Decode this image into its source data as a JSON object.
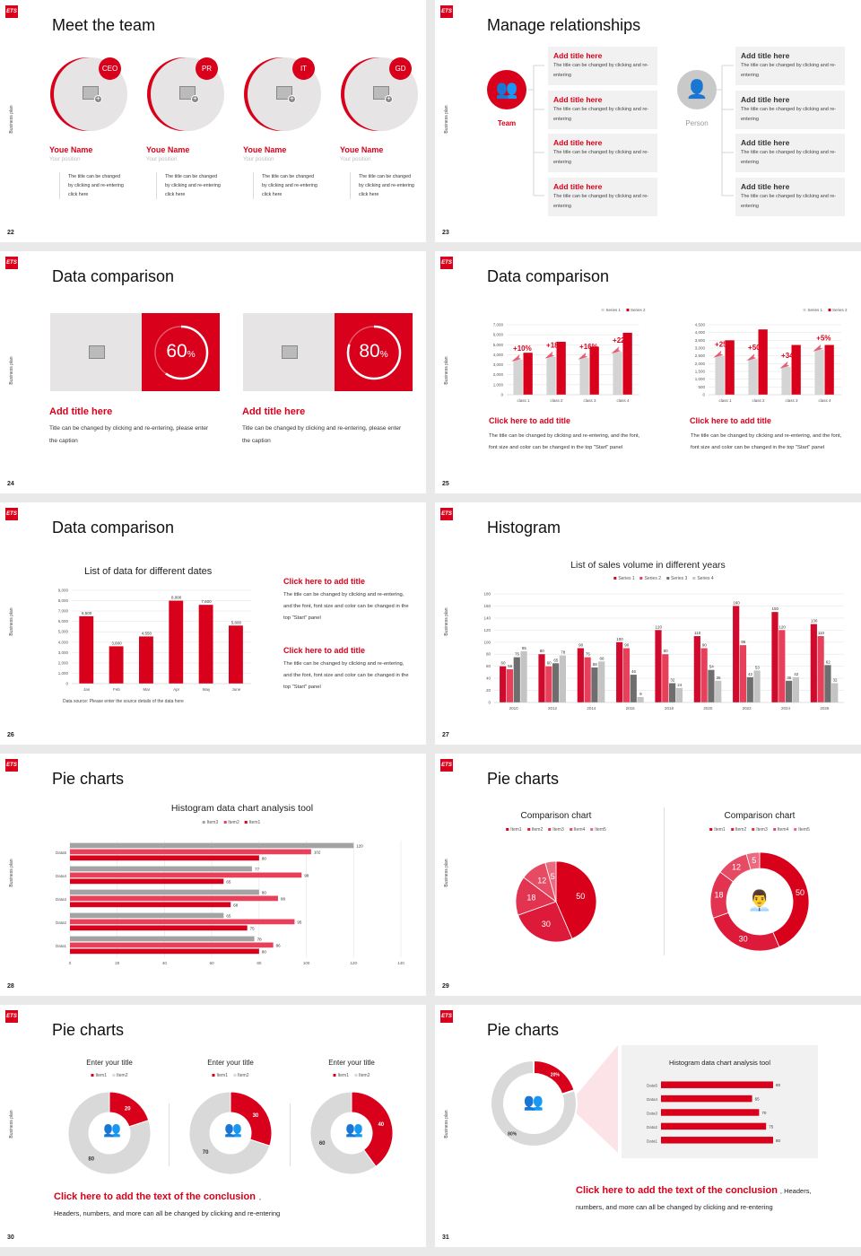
{
  "colors": {
    "accent": "#d9001b",
    "pink": "#e8405a",
    "dark_gray": "#6e6e6e",
    "light_gray": "#c9c9c9",
    "panel": "#f1f1f1"
  },
  "logo_text": "ETS",
  "side_label": "Business plan",
  "slides": [
    {
      "page": "22",
      "title": "Meet the team",
      "members": [
        {
          "badge": "CEO",
          "name": "Youe Name",
          "position": "Your position",
          "desc": "The title can be changed by clicking and re-entering click here",
          "icon": "image-placeholder-icon"
        },
        {
          "badge": "PR",
          "name": "Youe Name",
          "position": "Your position",
          "desc": "The title can be changed by clicking and re-entering click here",
          "icon": "image-placeholder-icon"
        },
        {
          "badge": "IT",
          "name": "Youe Name",
          "position": "Your position",
          "desc": "The title can be changed by clicking and re-entering click here",
          "icon": "image-placeholder-icon"
        },
        {
          "badge": "GD",
          "name": "Youe Name",
          "position": "Your position",
          "desc": "The title can be changed by clicking and re-entering click here",
          "icon": "image-placeholder-icon"
        }
      ]
    },
    {
      "page": "23",
      "title": "Manage relationships",
      "left_node": {
        "label": "Team",
        "icon": "team-icon"
      },
      "right_node": {
        "label": "Person",
        "icon": "person-icon"
      },
      "left_blocks": [
        {
          "title": "Add title here",
          "desc": "The title can be changed by clicking and re-entering"
        },
        {
          "title": "Add title here",
          "desc": "The title can be changed by clicking and re-entering"
        },
        {
          "title": "Add title here",
          "desc": "The title can be changed by clicking and re-entering"
        },
        {
          "title": "Add title here",
          "desc": "The title can be changed by clicking and re-entering"
        }
      ],
      "right_blocks": [
        {
          "title": "Add title here",
          "desc": "The title can be changed by clicking and re-entering"
        },
        {
          "title": "Add title here",
          "desc": "The title can be changed by clicking and re-entering"
        },
        {
          "title": "Add title here",
          "desc": "The title can be changed by clicking and re-entering"
        },
        {
          "title": "Add title here",
          "desc": "The title can be changed by clicking and re-entering"
        }
      ]
    },
    {
      "page": "24",
      "title": "Data comparison",
      "cards": [
        {
          "percent": 60,
          "value": "60",
          "unit": "%",
          "title": "Add title here",
          "desc": "Title can be changed by clicking and re-entering, please enter the caption"
        },
        {
          "percent": 80,
          "value": "80",
          "unit": "%",
          "title": "Add title here",
          "desc": "Title can be changed by clicking and re-entering, please enter the caption"
        }
      ]
    },
    {
      "page": "25",
      "title": "Data comparison",
      "captions": [
        {
          "title": "Click here to add title",
          "desc": "The title can be changed by clicking and re-entering, and the font, font size and color can be changed in the top \"Start\" panel"
        },
        {
          "title": "Click here to add title",
          "desc": "The title can be changed by clicking and re-entering, and the font, font size and color can be changed in the top \"Start\" panel"
        }
      ]
    },
    {
      "page": "26",
      "title": "Data comparison",
      "source": "Data source: Please enter the source details of the data here",
      "captions": [
        {
          "title": "Click here to add title",
          "desc": "The title can be changed by clicking and re-entering, and the font, font size and color can be changed in the top \"Start\" panel"
        },
        {
          "title": "Click here to add title",
          "desc": "The title can be changed by clicking and re-entering, and the font, font size and color can be changed in the top \"Start\" panel"
        }
      ]
    },
    {
      "page": "27",
      "title": "Histogram"
    },
    {
      "page": "28",
      "title": "Pie charts"
    },
    {
      "page": "29",
      "title": "Pie charts",
      "center_icon": "presenter-icon"
    },
    {
      "page": "30",
      "title": "Pie charts",
      "conclusion": "Click here to add the text of the conclusion",
      "conclusion_suffix": ",",
      "body": "Headers, numbers, and more can all be changed by clicking and re-entering",
      "center_icon": "group-icon"
    },
    {
      "page": "31",
      "title": "Pie charts",
      "conclusion": "Click here to add the text of the conclusion",
      "conclusion_suffix": ", Headers,",
      "body": "numbers, and more can all be changed by clicking and re-entering",
      "center_icon": "meeting-icon"
    }
  ],
  "chart_data": [
    {
      "id": "s25a",
      "type": "bar",
      "categories": [
        "class 1",
        "class 2",
        "class 3",
        "class 4"
      ],
      "series": [
        {
          "name": "Series 1",
          "values": [
            3500,
            3800,
            3700,
            4300
          ]
        },
        {
          "name": "Series 2",
          "values": [
            4200,
            5300,
            4800,
            6200
          ]
        }
      ],
      "annotations": [
        "+10%",
        "+18%",
        "+16%",
        "+22%"
      ],
      "ylim": [
        0,
        7000
      ],
      "ystep": 1000,
      "grid": true,
      "legend": "top-right"
    },
    {
      "id": "s25b",
      "type": "bar",
      "categories": [
        "class 1",
        "class 2",
        "class 3",
        "class 4"
      ],
      "series": [
        {
          "name": "Series 1",
          "values": [
            2500,
            2300,
            1800,
            2900
          ]
        },
        {
          "name": "Series 2",
          "values": [
            3500,
            4200,
            3200,
            3200
          ]
        }
      ],
      "annotations": [
        "+25%",
        "+50%",
        "+34%",
        "+5%"
      ],
      "ylim": [
        0,
        4500
      ],
      "ystep": 500,
      "grid": true,
      "legend": "top-right"
    },
    {
      "id": "s26",
      "type": "bar",
      "title": "List of data for different dates",
      "categories": [
        "Jan",
        "Feb",
        "Mar",
        "Apr",
        "May",
        "June"
      ],
      "series": [
        {
          "values": [
            6500,
            3600,
            4550,
            8000,
            7600,
            5600
          ]
        }
      ],
      "data_labels": [
        "6,500",
        "3,600",
        "4,550",
        "8,000",
        "7,600",
        "5,600"
      ],
      "ylim": [
        0,
        9000
      ],
      "ystep": 1000,
      "grid": true
    },
    {
      "id": "s27",
      "type": "bar",
      "title": "List of sales volume in different years",
      "categories": [
        "2010",
        "2012",
        "2014",
        "2016",
        "2018",
        "2020",
        "2022",
        "2024",
        "2026"
      ],
      "series": [
        {
          "name": "Series 1",
          "values": [
            60,
            80,
            90,
            100,
            120,
            110,
            160,
            150,
            130
          ]
        },
        {
          "name": "Series 2",
          "values": [
            55,
            60,
            75,
            90,
            80,
            90,
            95,
            120,
            110
          ]
        },
        {
          "name": "Series 3",
          "values": [
            75,
            65,
            58,
            46,
            32,
            54,
            42,
            36,
            62
          ]
        },
        {
          "name": "Series 4",
          "values": [
            85,
            78,
            68,
            9,
            24,
            36,
            53,
            42,
            32
          ]
        }
      ],
      "ylim": [
        0,
        180
      ],
      "ystep": 20,
      "grid": true,
      "legend": "top"
    },
    {
      "id": "s28",
      "type": "bar",
      "orientation": "horizontal",
      "title": "Histogram data chart analysis tool",
      "categories": [
        "Data5",
        "Data4",
        "Data3",
        "Data2",
        "Data1"
      ],
      "series": [
        {
          "name": "Item3",
          "values": [
            120,
            77,
            80,
            65,
            78
          ]
        },
        {
          "name": "Item2",
          "values": [
            102,
            98,
            88,
            95,
            86
          ]
        },
        {
          "name": "Item1",
          "values": [
            80,
            65,
            68,
            75,
            80
          ]
        }
      ],
      "xlim": [
        0,
        140
      ],
      "xstep": 20,
      "grid": true,
      "legend": "top"
    },
    {
      "id": "s29a",
      "type": "pie",
      "title": "Comparison chart",
      "labels": [
        "Item1",
        "Item2",
        "Item3",
        "Item4",
        "Item5"
      ],
      "values": [
        50,
        30,
        18,
        12,
        5
      ],
      "legend": "top"
    },
    {
      "id": "s29b",
      "type": "pie",
      "variant": "donut",
      "title": "Comparison chart",
      "labels": [
        "Item1",
        "Item2",
        "Item3",
        "Item4",
        "Item5"
      ],
      "values": [
        50,
        30,
        18,
        12,
        5
      ],
      "legend": "top"
    },
    {
      "id": "s30a",
      "type": "pie",
      "variant": "donut",
      "title": "Enter your title",
      "labels": [
        "Item1",
        "Item2"
      ],
      "values": [
        20,
        80
      ],
      "legend": "top"
    },
    {
      "id": "s30b",
      "type": "pie",
      "variant": "donut",
      "title": "Enter your title",
      "labels": [
        "Item1",
        "Item2"
      ],
      "values": [
        30,
        70
      ],
      "legend": "top"
    },
    {
      "id": "s30c",
      "type": "pie",
      "variant": "donut",
      "title": "Enter your title",
      "labels": [
        "Item1",
        "Item2"
      ],
      "values": [
        40,
        60
      ],
      "legend": "top"
    },
    {
      "id": "s31a",
      "type": "pie",
      "variant": "donut",
      "labels": [
        "20%",
        "80%"
      ],
      "values": [
        20,
        80
      ]
    },
    {
      "id": "s31b",
      "type": "bar",
      "orientation": "horizontal",
      "title": "Histogram data chart analysis tool",
      "categories": [
        "Data5",
        "Data4",
        "Data3",
        "Data2",
        "Data1"
      ],
      "series": [
        {
          "values": [
            80,
            65,
            70,
            75,
            80
          ]
        }
      ],
      "xlim": [
        0,
        80
      ]
    }
  ]
}
